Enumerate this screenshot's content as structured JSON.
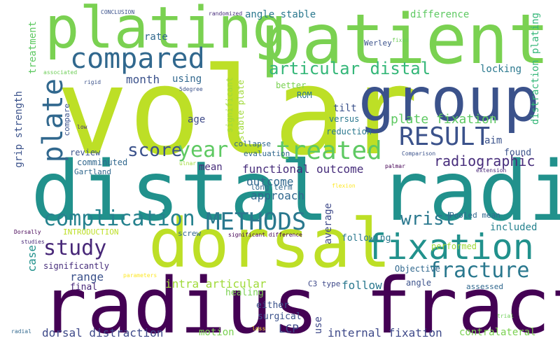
{
  "words": [
    {
      "text": "volar",
      "color": "#bddf26"
    },
    {
      "text": "distal radius",
      "color": "#21918c"
    },
    {
      "text": "radius fracture",
      "color": "#440154"
    },
    {
      "text": "patient",
      "color": "#7ad151"
    },
    {
      "text": "plating",
      "color": "#7ad151"
    },
    {
      "text": "dorsal",
      "color": "#bddf26"
    },
    {
      "text": "group",
      "color": "#3b528b"
    },
    {
      "text": "fixation",
      "color": "#21918c"
    },
    {
      "text": "compared",
      "color": "#31688e"
    },
    {
      "text": "treated",
      "color": "#5ec962"
    },
    {
      "text": "RESULT",
      "color": "#3b528b"
    },
    {
      "text": "METHODS",
      "color": "#2a788e"
    },
    {
      "text": "complication",
      "color": "#26828e"
    },
    {
      "text": "plate",
      "color": "#31688e"
    },
    {
      "text": "score",
      "color": "#3b528b"
    },
    {
      "text": "year",
      "color": "#5ec962"
    },
    {
      "text": "study",
      "color": "#482878"
    },
    {
      "text": "fracture",
      "color": "#2a788e"
    },
    {
      "text": "wrist",
      "color": "#2a788e"
    },
    {
      "text": "articular distal",
      "color": "#35b779"
    },
    {
      "text": "plate fixation",
      "color": "#5ec962"
    },
    {
      "text": "radiographic",
      "color": "#472d7b"
    },
    {
      "text": "functional outcome",
      "color": "#472d7b"
    },
    {
      "text": "outcome",
      "color": "#31688e"
    },
    {
      "text": "approach",
      "color": "#31688e"
    },
    {
      "text": "intra articular",
      "color": "#a0da39"
    },
    {
      "text": "dorsal distraction",
      "color": "#3e4989"
    },
    {
      "text": "internal fixation",
      "color": "#3e4989"
    },
    {
      "text": "range",
      "color": "#3b528b"
    },
    {
      "text": "month",
      "color": "#3b528b"
    },
    {
      "text": "angle stable",
      "color": "#2a788e"
    },
    {
      "text": "difference",
      "color": "#5ec962"
    },
    {
      "text": "locking",
      "color": "#2a788e"
    },
    {
      "text": "included",
      "color": "#26828e"
    },
    {
      "text": "follow",
      "color": "#2a788e"
    },
    {
      "text": "case",
      "color": "#21918c"
    },
    {
      "text": "distraction plating",
      "color": "#35b779"
    },
    {
      "text": "grip strength",
      "color": "#3b528b"
    },
    {
      "text": "treatment",
      "color": "#5ec962"
    },
    {
      "text": "rate",
      "color": "#31688e"
    },
    {
      "text": "using",
      "color": "#31688e"
    },
    {
      "text": "age",
      "color": "#3e4989"
    },
    {
      "text": "tilt",
      "color": "#3b528b"
    },
    {
      "text": "aim",
      "color": "#3b528b"
    },
    {
      "text": "found",
      "color": "#3b528b"
    },
    {
      "text": "mean",
      "color": "#472d7b"
    },
    {
      "text": "long term",
      "color": "#31688e"
    },
    {
      "text": "average",
      "color": "#3e4989"
    },
    {
      "text": "following",
      "color": "#2a788e"
    },
    {
      "text": "Pooled mean",
      "color": "#31688e"
    },
    {
      "text": "motion",
      "color": "#7ad151"
    },
    {
      "text": "contralateral",
      "color": "#7ad151"
    },
    {
      "text": "LCP",
      "color": "#3e4989"
    },
    {
      "text": "use",
      "color": "#3e4989"
    },
    {
      "text": "either",
      "color": "#3b528b"
    },
    {
      "text": "surgical",
      "color": "#3b528b"
    },
    {
      "text": "healing",
      "color": "#7ad151"
    },
    {
      "text": "final",
      "color": "#482878"
    },
    {
      "text": "significantly",
      "color": "#472d7b"
    },
    {
      "text": "Objective",
      "color": "#31688e"
    },
    {
      "text": "angle",
      "color": "#3b528b"
    },
    {
      "text": "assessed",
      "color": "#31688e"
    },
    {
      "text": "performed",
      "color": "#a0da39"
    },
    {
      "text": "compare",
      "color": "#3b528b"
    },
    {
      "text": "review",
      "color": "#3b528b"
    },
    {
      "text": "comminuted",
      "color": "#31688e"
    },
    {
      "text": "Gartland",
      "color": "#31688e"
    },
    {
      "text": "better",
      "color": "#7ad151"
    },
    {
      "text": "ROM",
      "color": "#2a788e"
    },
    {
      "text": "versus",
      "color": "#2a788e"
    },
    {
      "text": "reduction",
      "color": "#2a788e"
    },
    {
      "text": "collapse",
      "color": "#31688e"
    },
    {
      "text": "evaluation",
      "color": "#31688e"
    },
    {
      "text": "significant",
      "color": "#a0da39"
    },
    {
      "text": "stable plate",
      "color": "#a0da39"
    },
    {
      "text": "Werley",
      "color": "#3b528b"
    },
    {
      "text": "INTRODUCTION",
      "color": "#bddf26"
    },
    {
      "text": "screw",
      "color": "#31688e"
    },
    {
      "text": "C3 type",
      "color": "#3e4989"
    },
    {
      "text": "CONCLUSION",
      "color": "#3b528b"
    },
    {
      "text": "randomized",
      "color": "#472d7b"
    },
    {
      "text": "associated",
      "color": "#6ece58"
    },
    {
      "text": "rigid",
      "color": "#3b528b"
    },
    {
      "text": "5degree",
      "color": "#3b528b"
    },
    {
      "text": "low",
      "color": "#472d7b"
    },
    {
      "text": "fixed",
      "color": "#6ece58"
    },
    {
      "text": "Comparison",
      "color": "#3b528b"
    },
    {
      "text": "palmar",
      "color": "#440154"
    },
    {
      "text": "ulnar",
      "color": "#a0da39"
    },
    {
      "text": "extension",
      "color": "#482878"
    },
    {
      "text": "flexion",
      "color": "#fde725"
    },
    {
      "text": "significant difference",
      "color": "#440154"
    },
    {
      "text": "Dorsally",
      "color": "#440154"
    },
    {
      "text": "studies",
      "color": "#482878"
    },
    {
      "text": "parameters",
      "color": "#fde725"
    },
    {
      "text": "radial",
      "color": "#31688e"
    },
    {
      "text": "loss",
      "color": "#fde725"
    },
    {
      "text": "trial",
      "color": "#6ece58"
    }
  ]
}
